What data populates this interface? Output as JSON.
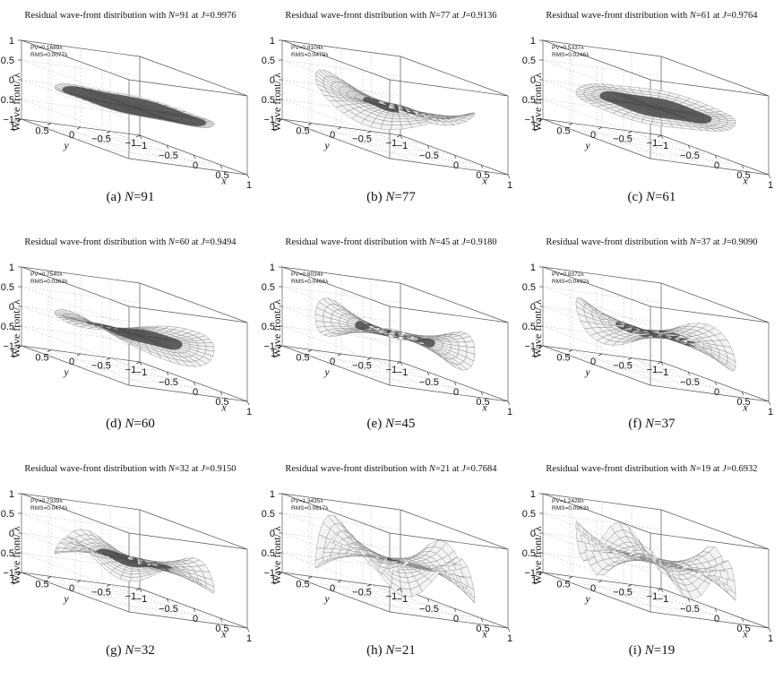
{
  "chart_data": [
    {
      "type": "surface3d",
      "label": "(a)",
      "N": "91",
      "J": "0.9976",
      "PV": "PV=0.1689λ",
      "RMS": "RMS=0.0077λ",
      "zlim": [
        -1,
        1
      ],
      "xlim": [
        -1,
        1
      ],
      "ylim": [
        -1,
        1
      ]
    },
    {
      "type": "surface3d",
      "label": "(b)",
      "N": "77",
      "J": "0.9136",
      "PV": "PV=0.8104λ",
      "RMS": "RMS=0.0479λ",
      "zlim": [
        -1,
        1
      ],
      "xlim": [
        -1,
        1
      ],
      "ylim": [
        -1,
        1
      ]
    },
    {
      "type": "surface3d",
      "label": "(c)",
      "N": "61",
      "J": "0.9764",
      "PV": "PV=0.5337λ",
      "RMS": "RMS=0.0246λ",
      "zlim": [
        -1,
        1
      ],
      "xlim": [
        -1,
        1
      ],
      "ylim": [
        -1,
        1
      ]
    },
    {
      "type": "surface3d",
      "label": "(d)",
      "N": "60",
      "J": "0.9494",
      "PV": "PV=0.7540λ",
      "RMS": "RMS=0.0363λ",
      "zlim": [
        -1,
        1
      ],
      "xlim": [
        -1,
        1
      ],
      "ylim": [
        -1,
        1
      ]
    },
    {
      "type": "surface3d",
      "label": "(e)",
      "N": "45",
      "J": "0.9180",
      "PV": "PV=0.8034λ",
      "RMS": "RMS=0.0466λ",
      "zlim": [
        -1,
        1
      ],
      "xlim": [
        -1,
        1
      ],
      "ylim": [
        -1,
        1
      ]
    },
    {
      "type": "surface3d",
      "label": "(f)",
      "N": "37",
      "J": "0.9090",
      "PV": "PV=0.8372λ",
      "RMS": "RMS=0.0492λ",
      "zlim": [
        -1,
        1
      ],
      "xlim": [
        -1,
        1
      ],
      "ylim": [
        -1,
        1
      ]
    },
    {
      "type": "surface3d",
      "label": "(g)",
      "N": "32",
      "J": "0.9150",
      "PV": "PV=0.7339λ",
      "RMS": "RMS=0.0474λ",
      "zlim": [
        -1,
        1
      ],
      "xlim": [
        -1,
        1
      ],
      "ylim": [
        -1,
        1
      ]
    },
    {
      "type": "surface3d",
      "label": "(h)",
      "N": "21",
      "J": "0.7684",
      "PV": "PV=1.3435λ",
      "RMS": "RMS=0.0817λ",
      "zlim": [
        -1,
        1
      ],
      "xlim": [
        -1,
        1
      ],
      "ylim": [
        -1,
        1
      ]
    },
    {
      "type": "surface3d",
      "label": "(i)",
      "N": "19",
      "J": "0.6932",
      "PV": "PV=1.2428λ",
      "RMS": "RMS=0.0963λ",
      "zlim": [
        -1,
        1
      ],
      "xlim": [
        -1,
        1
      ],
      "ylim": [
        -1,
        1
      ]
    }
  ],
  "common": {
    "title_prefix": "Residual wave-front distribution with ",
    "title_mid": " at ",
    "n_symbol": "N",
    "j_symbol": "J",
    "eq": "=",
    "zlabel": "Wave front/ λ",
    "xlabel": "x",
    "ylabel": "y",
    "z_ticks": [
      "1",
      "0.5",
      "0",
      "−0.5",
      "−1"
    ],
    "x_ticks": [
      "−1",
      "−0.5",
      "0",
      "0.5",
      "1"
    ],
    "y_ticks": [
      "1",
      "0.5",
      "0",
      "−0.5",
      "−1"
    ]
  }
}
